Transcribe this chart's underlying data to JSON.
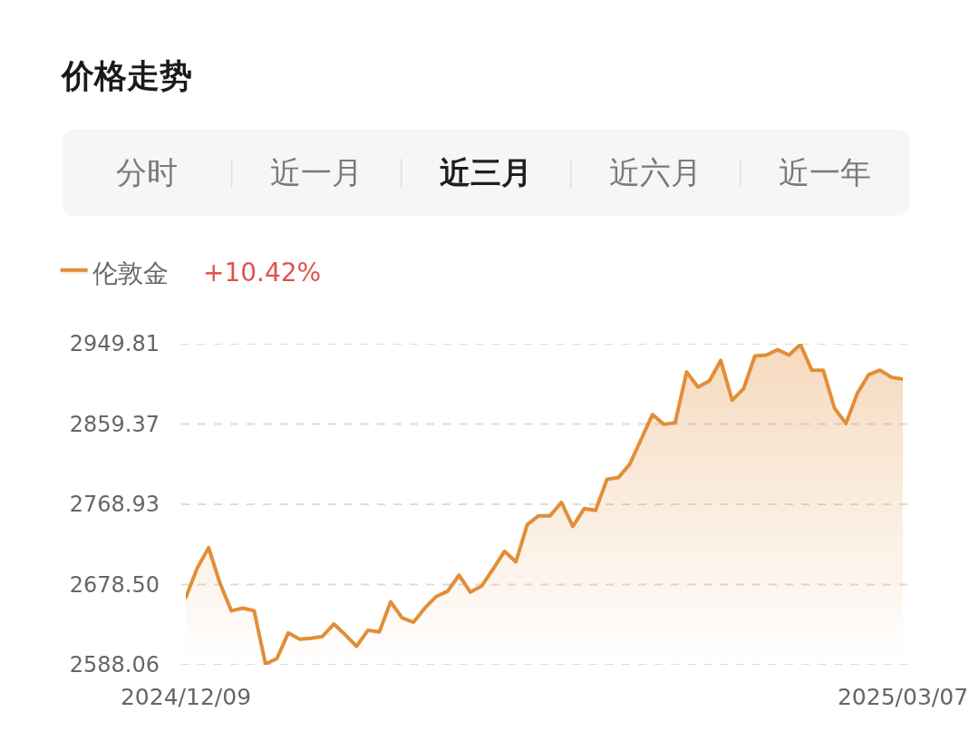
{
  "chart_data": {
    "type": "area",
    "title": "价格走势",
    "annotations": [
      "分时",
      "近一月",
      "近三月",
      "近六月",
      "近一年",
      "+10.42%"
    ],
    "categories": [
      "2024/12/09",
      null,
      null,
      null,
      null,
      null,
      null,
      null,
      null,
      null,
      null,
      null,
      null,
      null,
      null,
      null,
      null,
      null,
      null,
      null,
      null,
      null,
      null,
      null,
      null,
      null,
      null,
      null,
      null,
      null,
      null,
      null,
      null,
      null,
      null,
      null,
      null,
      null,
      null,
      null,
      null,
      null,
      null,
      null,
      null,
      null,
      null,
      null,
      null,
      null,
      null,
      null,
      null,
      null,
      null,
      null,
      null,
      null,
      null,
      null,
      null,
      null,
      null,
      "2025/03/07"
    ],
    "series": [
      {
        "name": "伦敦金",
        "color": "#e28e38",
        "values": [
          2664,
          2697,
          2720,
          2680,
          2649,
          2652,
          2649,
          2589,
          2595,
          2624,
          2617,
          2618,
          2620,
          2634,
          2622,
          2609,
          2627,
          2625,
          2659,
          2641,
          2636,
          2652,
          2665,
          2671,
          2689,
          2670,
          2677,
          2696,
          2716,
          2704,
          2746,
          2756,
          2756,
          2771,
          2744,
          2764,
          2762,
          2797,
          2799,
          2814,
          2842,
          2870,
          2859,
          2861,
          2918,
          2901,
          2908,
          2931,
          2886,
          2899,
          2936,
          2937,
          2943,
          2937,
          2949,
          2920,
          2920,
          2877,
          2860,
          2894,
          2915,
          2920,
          2912,
          2910
        ]
      }
    ],
    "ylim": [
      2588.06,
      2949.81
    ],
    "yticks": [
      2588.06,
      {
        "value": 2678.5,
        "label": "2678.50"
      },
      2768.93,
      2859.37,
      2949.81
    ],
    "grid": "y",
    "legend": "top left",
    "line_style": "solid"
  }
}
